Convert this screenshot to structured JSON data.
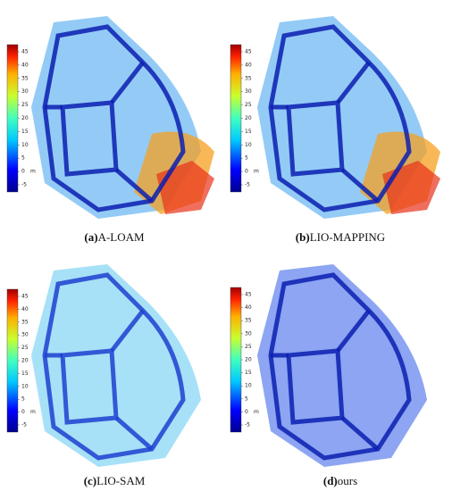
{
  "panels": [
    {
      "label": "(a)",
      "name": "A-LOAM",
      "colorbar": {
        "ticks": [
          45,
          40,
          35,
          30,
          25,
          20,
          15,
          10,
          5,
          0,
          -5
        ],
        "unit": "m"
      }
    },
    {
      "label": "(b)",
      "name": "LIO-MAPPING",
      "colorbar": {
        "ticks": [
          45,
          40,
          35,
          30,
          25,
          20,
          15,
          10,
          5,
          0,
          -5
        ],
        "unit": "m"
      }
    },
    {
      "label": "(c)",
      "name": "LIO-SAM",
      "colorbar": {
        "ticks": [
          45,
          40,
          35,
          30,
          25,
          20,
          15,
          10,
          5,
          0,
          -5
        ],
        "unit": "m"
      }
    },
    {
      "label": "(d)",
      "name": "ours",
      "colorbar": {
        "ticks": [
          45,
          40,
          35,
          30,
          25,
          20,
          15,
          10,
          5,
          0,
          -5
        ],
        "unit": "m"
      }
    }
  ]
}
